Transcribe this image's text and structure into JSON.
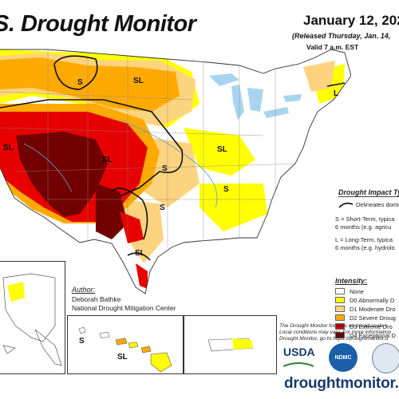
{
  "header": {
    "title": "S. Drought Monitor",
    "date": "January 12, 202",
    "released": "(Released Thursday, Jan. 14,",
    "valid": "Valid 7 a.m. EST"
  },
  "map_labels": {
    "s": "S",
    "sl": "SL",
    "l": "L"
  },
  "impact_legend": {
    "title": "Drought Impact Ty",
    "delineates": "Delineates domi",
    "short_term_1": "S = Short-Term, typica",
    "short_term_2": "6 months (e.g. agricu",
    "long_term_1": "L = Long-Term, typica",
    "long_term_2": "6 months (e.g. hydrolo"
  },
  "intensity_legend": {
    "title": "Intensity:",
    "items": [
      {
        "label": "None",
        "color": "#ffffff"
      },
      {
        "label": "D0 Abnormally D",
        "color": "#ffff00"
      },
      {
        "label": "D1 Moderate Dro",
        "color": "#fcd37f"
      },
      {
        "label": "D2 Severe Droug",
        "color": "#ffaa00"
      },
      {
        "label": "D3 Extreme Dro",
        "color": "#e60000"
      },
      {
        "label": "D4 Exceptional D",
        "color": "#730000"
      }
    ]
  },
  "author": {
    "label": "Author:",
    "name": "Deborah Bathke",
    "org": "National Drought Mitigation Center"
  },
  "footer": {
    "note_line1": "The Drought Monitor focuses on broad-scale c",
    "note_line2": "Local conditions may vary. For more information",
    "note_line3": "Drought Monitor, go to https://droughtmonitor.u",
    "url": "droughtmonitor.un",
    "usda": "USDA",
    "ndmc": "NDMC"
  }
}
